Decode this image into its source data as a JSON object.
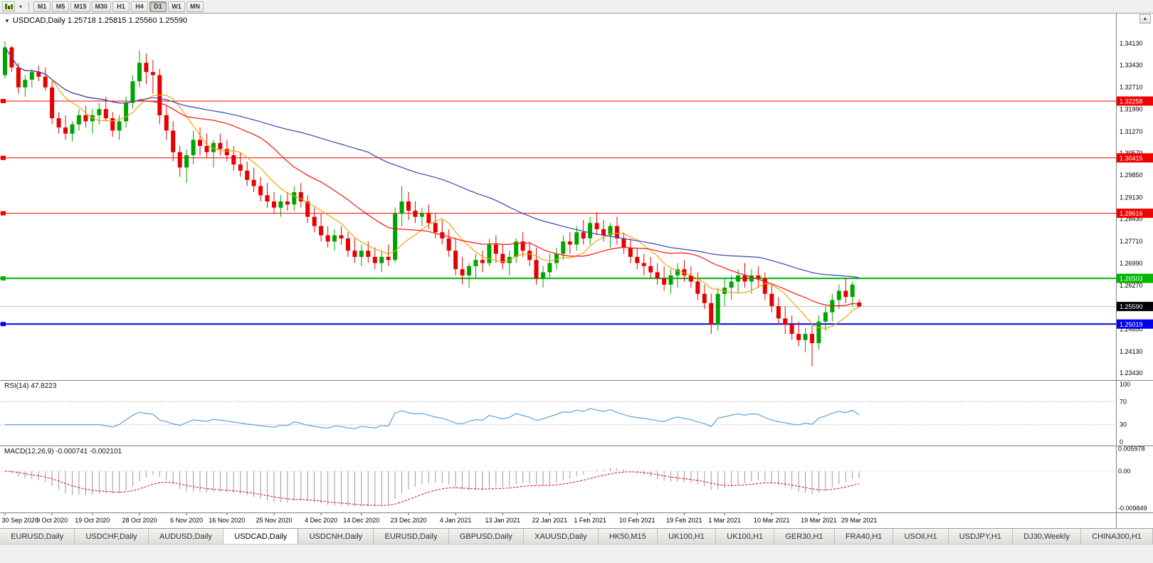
{
  "toolbar": {
    "timeframes": [
      {
        "label": "M1",
        "active": false
      },
      {
        "label": "M5",
        "active": false
      },
      {
        "label": "M15",
        "active": false
      },
      {
        "label": "M30",
        "active": false
      },
      {
        "label": "H1",
        "active": false
      },
      {
        "label": "H4",
        "active": false
      },
      {
        "label": "D1",
        "active": true
      },
      {
        "label": "W1",
        "active": false
      },
      {
        "label": "MN",
        "active": false
      }
    ]
  },
  "icons": {
    "chart_dropdown": "▾",
    "header_marker": "▼",
    "scroll_up": "▲"
  },
  "chart": {
    "header": "USDCAD,Daily 1.25718 1.25815 1.25560 1.25590",
    "symbol": "USDCAD",
    "period": "Daily",
    "open": "1.25718",
    "high": "1.25815",
    "low": "1.25560",
    "close": "1.25590"
  },
  "colors": {
    "up": "#00a400",
    "down": "#e60000",
    "rsi": "#4f9ad6",
    "hist": "#9a9a9a",
    "signal": "#e00000",
    "bid_line": "#c0c0c0",
    "scale_sep": "#7f7f7f"
  },
  "chart_data": {
    "type": "candlestick",
    "title": "USDCAD,Daily",
    "price": {
      "ylim": [
        1.232,
        1.351
      ],
      "yticks": [
        "1.34130",
        "1.33430",
        "1.32710",
        "1.31990",
        "1.31270",
        "1.30570",
        "1.29850",
        "1.29130",
        "1.28430",
        "1.27710",
        "1.26990",
        "1.26270",
        "1.25550",
        "1.24850",
        "1.24130",
        "1.23430"
      ],
      "candles": [
        [
          1.331,
          1.342,
          1.33,
          1.34
        ],
        [
          1.34,
          1.3405,
          1.332,
          1.3335
        ],
        [
          1.3335,
          1.335,
          1.325,
          1.327
        ],
        [
          1.327,
          1.331,
          1.324,
          1.3295
        ],
        [
          1.3295,
          1.333,
          1.327,
          1.332
        ],
        [
          1.332,
          1.334,
          1.329,
          1.3305
        ],
        [
          1.3305,
          1.3335,
          1.326,
          1.327
        ],
        [
          1.327,
          1.329,
          1.315,
          1.317
        ],
        [
          1.317,
          1.319,
          1.312,
          1.314
        ],
        [
          1.314,
          1.318,
          1.31,
          1.312
        ],
        [
          1.312,
          1.316,
          1.3095,
          1.315
        ],
        [
          1.315,
          1.32,
          1.313,
          1.318
        ],
        [
          1.318,
          1.321,
          1.314,
          1.316
        ],
        [
          1.316,
          1.32,
          1.312,
          1.318
        ],
        [
          1.318,
          1.322,
          1.315,
          1.32
        ],
        [
          1.32,
          1.324,
          1.316,
          1.317
        ],
        [
          1.317,
          1.319,
          1.311,
          1.313
        ],
        [
          1.313,
          1.318,
          1.31,
          1.316
        ],
        [
          1.316,
          1.324,
          1.314,
          1.322
        ],
        [
          1.322,
          1.331,
          1.32,
          1.329
        ],
        [
          1.329,
          1.339,
          1.327,
          1.335
        ],
        [
          1.335,
          1.338,
          1.328,
          1.332
        ],
        [
          1.332,
          1.336,
          1.325,
          1.331
        ],
        [
          1.331,
          1.333,
          1.315,
          1.318
        ],
        [
          1.318,
          1.321,
          1.31,
          1.313
        ],
        [
          1.313,
          1.316,
          1.303,
          1.306
        ],
        [
          1.306,
          1.308,
          1.298,
          1.301
        ],
        [
          1.301,
          1.307,
          1.296,
          1.305
        ],
        [
          1.305,
          1.313,
          1.302,
          1.31
        ],
        [
          1.31,
          1.314,
          1.305,
          1.308
        ],
        [
          1.308,
          1.312,
          1.304,
          1.306
        ],
        [
          1.306,
          1.31,
          1.301,
          1.309
        ],
        [
          1.309,
          1.312,
          1.305,
          1.307
        ],
        [
          1.307,
          1.31,
          1.303,
          1.305
        ],
        [
          1.305,
          1.308,
          1.3,
          1.302
        ],
        [
          1.302,
          1.306,
          1.298,
          1.3
        ],
        [
          1.3,
          1.303,
          1.295,
          1.297
        ],
        [
          1.297,
          1.301,
          1.293,
          1.295
        ],
        [
          1.295,
          1.298,
          1.29,
          1.292
        ],
        [
          1.292,
          1.296,
          1.288,
          1.29
        ],
        [
          1.29,
          1.293,
          1.286,
          1.288
        ],
        [
          1.288,
          1.292,
          1.285,
          1.29
        ],
        [
          1.29,
          1.293,
          1.287,
          1.289
        ],
        [
          1.289,
          1.295,
          1.287,
          1.293
        ],
        [
          1.293,
          1.296,
          1.288,
          1.29
        ],
        [
          1.29,
          1.292,
          1.283,
          1.285
        ],
        [
          1.285,
          1.288,
          1.28,
          1.282
        ],
        [
          1.282,
          1.286,
          1.277,
          1.279
        ],
        [
          1.279,
          1.282,
          1.275,
          1.277
        ],
        [
          1.277,
          1.281,
          1.274,
          1.279
        ],
        [
          1.279,
          1.282,
          1.276,
          1.278
        ],
        [
          1.278,
          1.28,
          1.272,
          1.274
        ],
        [
          1.274,
          1.278,
          1.27,
          1.272
        ],
        [
          1.272,
          1.276,
          1.269,
          1.274
        ],
        [
          1.274,
          1.277,
          1.27,
          1.272
        ],
        [
          1.272,
          1.275,
          1.268,
          1.27
        ],
        [
          1.27,
          1.274,
          1.267,
          1.272
        ],
        [
          1.272,
          1.276,
          1.269,
          1.271
        ],
        [
          1.271,
          1.288,
          1.27,
          1.286
        ],
        [
          1.286,
          1.295,
          1.282,
          1.29
        ],
        [
          1.29,
          1.293,
          1.284,
          1.287
        ],
        [
          1.287,
          1.29,
          1.283,
          1.285
        ],
        [
          1.285,
          1.288,
          1.282,
          1.286
        ],
        [
          1.286,
          1.289,
          1.281,
          1.283
        ],
        [
          1.283,
          1.286,
          1.278,
          1.28
        ],
        [
          1.28,
          1.284,
          1.276,
          1.278
        ],
        [
          1.278,
          1.281,
          1.272,
          1.274
        ],
        [
          1.274,
          1.278,
          1.266,
          1.268
        ],
        [
          1.268,
          1.272,
          1.263,
          1.266
        ],
        [
          1.266,
          1.27,
          1.262,
          1.269
        ],
        [
          1.269,
          1.273,
          1.265,
          1.271
        ],
        [
          1.271,
          1.274,
          1.267,
          1.27
        ],
        [
          1.27,
          1.278,
          1.269,
          1.276
        ],
        [
          1.276,
          1.279,
          1.27,
          1.273
        ],
        [
          1.273,
          1.276,
          1.268,
          1.27
        ],
        [
          1.27,
          1.274,
          1.266,
          1.272
        ],
        [
          1.272,
          1.278,
          1.27,
          1.277
        ],
        [
          1.277,
          1.28,
          1.272,
          1.274
        ],
        [
          1.274,
          1.277,
          1.269,
          1.271
        ],
        [
          1.271,
          1.275,
          1.263,
          1.265
        ],
        [
          1.265,
          1.269,
          1.262,
          1.267
        ],
        [
          1.267,
          1.273,
          1.265,
          1.27
        ],
        [
          1.27,
          1.275,
          1.268,
          1.273
        ],
        [
          1.273,
          1.279,
          1.271,
          1.277
        ],
        [
          1.277,
          1.28,
          1.273,
          1.276
        ],
        [
          1.276,
          1.282,
          1.274,
          1.28
        ],
        [
          1.28,
          1.284,
          1.276,
          1.278
        ],
        [
          1.278,
          1.285,
          1.276,
          1.283
        ],
        [
          1.283,
          1.2865,
          1.279,
          1.281
        ],
        [
          1.281,
          1.284,
          1.277,
          1.279
        ],
        [
          1.279,
          1.283,
          1.275,
          1.282
        ],
        [
          1.282,
          1.285,
          1.276,
          1.278
        ],
        [
          1.278,
          1.28,
          1.273,
          1.275
        ],
        [
          1.275,
          1.278,
          1.27,
          1.272
        ],
        [
          1.272,
          1.275,
          1.268,
          1.27
        ],
        [
          1.27,
          1.273,
          1.266,
          1.269
        ],
        [
          1.269,
          1.272,
          1.265,
          1.267
        ],
        [
          1.267,
          1.27,
          1.263,
          1.265
        ],
        [
          1.265,
          1.269,
          1.261,
          1.263
        ],
        [
          1.263,
          1.268,
          1.26,
          1.266
        ],
        [
          1.266,
          1.27,
          1.262,
          1.268
        ],
        [
          1.268,
          1.271,
          1.264,
          1.266
        ],
        [
          1.266,
          1.269,
          1.262,
          1.264
        ],
        [
          1.264,
          1.267,
          1.258,
          1.26
        ],
        [
          1.26,
          1.263,
          1.255,
          1.257
        ],
        [
          1.257,
          1.26,
          1.247,
          1.25
        ],
        [
          1.25,
          1.262,
          1.248,
          1.26
        ],
        [
          1.26,
          1.265,
          1.256,
          1.262
        ],
        [
          1.262,
          1.266,
          1.258,
          1.264
        ],
        [
          1.264,
          1.268,
          1.26,
          1.266
        ],
        [
          1.266,
          1.27,
          1.262,
          1.264
        ],
        [
          1.264,
          1.268,
          1.26,
          1.266
        ],
        [
          1.266,
          1.269,
          1.262,
          1.265
        ],
        [
          1.265,
          1.267,
          1.258,
          1.26
        ],
        [
          1.26,
          1.263,
          1.254,
          1.256
        ],
        [
          1.256,
          1.259,
          1.25,
          1.252
        ],
        [
          1.252,
          1.256,
          1.247,
          1.25
        ],
        [
          1.25,
          1.253,
          1.245,
          1.247
        ],
        [
          1.247,
          1.251,
          1.243,
          1.245
        ],
        [
          1.245,
          1.249,
          1.241,
          1.247
        ],
        [
          1.247,
          1.25,
          1.2365,
          1.244
        ],
        [
          1.244,
          1.253,
          1.242,
          1.251
        ],
        [
          1.251,
          1.256,
          1.248,
          1.254
        ],
        [
          1.254,
          1.26,
          1.251,
          1.258
        ],
        [
          1.258,
          1.263,
          1.255,
          1.261
        ],
        [
          1.261,
          1.265,
          1.257,
          1.259
        ],
        [
          1.259,
          1.264,
          1.256,
          1.263
        ],
        [
          1.25718,
          1.25815,
          1.2556,
          1.2559
        ]
      ],
      "date_labels": [
        {
          "text": "30 Sep 2020",
          "index": 0
        },
        {
          "text": "9 Oct 2020",
          "index": 7
        },
        {
          "text": "19 Oct 2020",
          "index": 13
        },
        {
          "text": "28 Oct 2020",
          "index": 20
        },
        {
          "text": "6 Nov 2020",
          "index": 27
        },
        {
          "text": "16 Nov 2020",
          "index": 33
        },
        {
          "text": "25 Nov 2020",
          "index": 40
        },
        {
          "text": "4 Dec 2020",
          "index": 47
        },
        {
          "text": "14 Dec 2020",
          "index": 53
        },
        {
          "text": "23 Dec 2020",
          "index": 60
        },
        {
          "text": "4 Jan 2021",
          "index": 67
        },
        {
          "text": "13 Jan 2021",
          "index": 74
        },
        {
          "text": "22 Jan 2021",
          "index": 81
        },
        {
          "text": "1 Feb 2021",
          "index": 87
        },
        {
          "text": "10 Feb 2021",
          "index": 94
        },
        {
          "text": "19 Feb 2021",
          "index": 101
        },
        {
          "text": "1 Mar 2021",
          "index": 107
        },
        {
          "text": "10 Mar 2021",
          "index": 114
        },
        {
          "text": "19 Mar 2021",
          "index": 121
        },
        {
          "text": "29 Mar 2021",
          "index": 127
        }
      ],
      "hlines": [
        {
          "value": 1.32258,
          "label": "1.32258",
          "color": "#f00000",
          "width": 1
        },
        {
          "value": 1.30415,
          "label": "1.30415",
          "color": "#f00000",
          "width": 1
        },
        {
          "value": 1.28616,
          "label": "1.28616",
          "color": "#f00000",
          "width": 1
        },
        {
          "value": 1.26503,
          "label": "1.26503",
          "color": "#00b400",
          "width": 2
        },
        {
          "value": 1.25019,
          "label": "1.25019",
          "color": "#0000f0",
          "width": 2
        }
      ],
      "current": {
        "value": 1.2559,
        "label": "1.25590"
      },
      "ma": [
        {
          "period": 8,
          "color": "#f5a300"
        },
        {
          "period": 21,
          "color": "#ff1010"
        },
        {
          "period": 55,
          "color": "#3348b0"
        }
      ]
    },
    "rsi": {
      "header": "RSI(14) 47.8223",
      "period": 14,
      "value": 47.8223,
      "levels_dashed": [
        70,
        30
      ],
      "scale_labels": [
        100,
        70,
        30,
        0
      ],
      "ylim": [
        0,
        100
      ]
    },
    "macd": {
      "header": "MACD(12,26,9) -0.000741 -0.002101",
      "fast": 12,
      "slow": 26,
      "signal": 9,
      "macd_value": -0.000741,
      "signal_value": -0.002101,
      "scale_labels": [
        "0.005978",
        "0.00",
        "-0.009849"
      ]
    }
  },
  "tabs": [
    {
      "label": "EURUSD,Daily",
      "active": false
    },
    {
      "label": "USDCHF,Daily",
      "active": false
    },
    {
      "label": "AUDUSD,Daily",
      "active": false
    },
    {
      "label": "USDCAD,Daily",
      "active": true
    },
    {
      "label": "USDCNH,Daily",
      "active": false
    },
    {
      "label": "EURUSD,Daily",
      "active": false
    },
    {
      "label": "GBPUSD,Daily",
      "active": false
    },
    {
      "label": "XAUUSD,Daily",
      "active": false
    },
    {
      "label": "HK50,M15",
      "active": false
    },
    {
      "label": "UK100,H1",
      "active": false
    },
    {
      "label": "UK100,H1",
      "active": false
    },
    {
      "label": "GER30,H1",
      "active": false
    },
    {
      "label": "FRA40,H1",
      "active": false
    },
    {
      "label": "USOil,H1",
      "active": false
    },
    {
      "label": "USDJPY,H1",
      "active": false
    },
    {
      "label": "DJ30,Weekly",
      "active": false
    },
    {
      "label": "CHINA300,H1",
      "active": false
    }
  ]
}
